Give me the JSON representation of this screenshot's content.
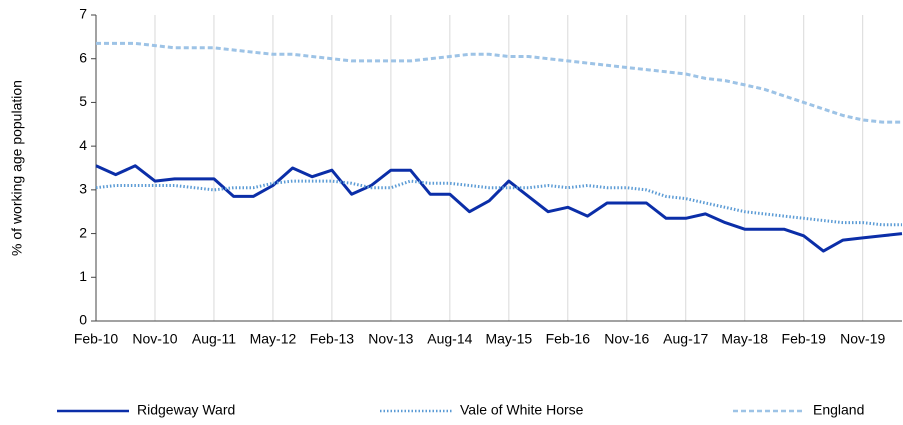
{
  "chart_data": {
    "type": "line",
    "y_label": "% of working age population",
    "categories": [
      "Feb-10",
      null,
      null,
      "Nov-10",
      null,
      null,
      "Aug-11",
      null,
      null,
      "May-12",
      null,
      null,
      "Feb-13",
      null,
      null,
      "Nov-13",
      null,
      null,
      "Aug-14",
      null,
      null,
      "May-15",
      null,
      null,
      "Feb-16",
      null,
      null,
      "Nov-16",
      null,
      null,
      "Aug-17",
      null,
      null,
      "May-18",
      null,
      null,
      "Feb-19",
      null,
      null,
      "Nov-19",
      null,
      null
    ],
    "series": [
      {
        "name": "Ridgeway Ward",
        "color": "#0b2ea8",
        "style": "solid",
        "values": [
          3.55,
          3.35,
          3.55,
          3.2,
          3.25,
          3.25,
          3.25,
          2.85,
          2.85,
          3.1,
          3.5,
          3.3,
          3.45,
          2.9,
          3.1,
          3.45,
          3.45,
          2.9,
          2.9,
          2.5,
          2.75,
          3.2,
          2.85,
          2.5,
          2.6,
          2.4,
          2.7,
          2.7,
          2.7,
          2.35,
          2.35,
          2.45,
          2.25,
          2.1,
          2.1,
          2.1,
          1.95,
          1.6,
          1.85,
          1.9,
          1.95,
          2.0
        ]
      },
      {
        "name": "Vale of White Horse",
        "color": "#5b9bd5",
        "style": "dotted",
        "values": [
          3.05,
          3.1,
          3.1,
          3.1,
          3.1,
          3.05,
          3.0,
          3.05,
          3.05,
          3.15,
          3.2,
          3.2,
          3.2,
          3.15,
          3.05,
          3.05,
          3.2,
          3.15,
          3.15,
          3.1,
          3.05,
          3.05,
          3.05,
          3.1,
          3.05,
          3.1,
          3.05,
          3.05,
          3.0,
          2.85,
          2.8,
          2.7,
          2.6,
          2.5,
          2.45,
          2.4,
          2.35,
          2.3,
          2.25,
          2.25,
          2.2,
          2.2
        ]
      },
      {
        "name": "England",
        "color": "#9dc3e6",
        "style": "dashed",
        "values": [
          6.35,
          6.35,
          6.35,
          6.3,
          6.25,
          6.25,
          6.25,
          6.2,
          6.15,
          6.1,
          6.1,
          6.05,
          6.0,
          5.95,
          5.95,
          5.95,
          5.95,
          6.0,
          6.05,
          6.1,
          6.1,
          6.05,
          6.05,
          6.0,
          5.95,
          5.9,
          5.85,
          5.8,
          5.75,
          5.7,
          5.65,
          5.55,
          5.5,
          5.4,
          5.3,
          5.15,
          5.0,
          4.85,
          4.7,
          4.6,
          4.55,
          4.55
        ]
      }
    ],
    "ylim": [
      0,
      7
    ],
    "yticks": [
      0,
      1,
      2,
      3,
      4,
      5,
      6,
      7
    ],
    "grid": "x",
    "legend": "bottom"
  }
}
